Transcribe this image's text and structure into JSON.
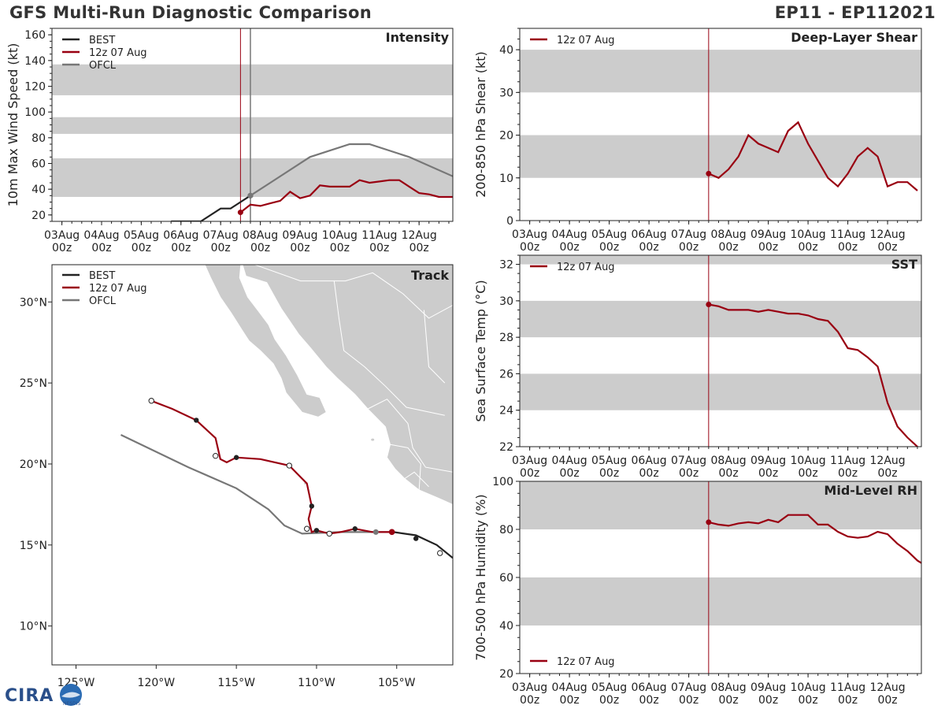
{
  "header": {
    "title_left": "GFS Multi-Run Diagnostic Comparison",
    "title_right": "EP11 - EP112021"
  },
  "logo": {
    "text": "CIRA",
    "subtext": "NESDIS"
  },
  "time_axis": {
    "ticks": [
      "03Aug",
      "04Aug",
      "05Aug",
      "06Aug",
      "07Aug",
      "08Aug",
      "09Aug",
      "10Aug",
      "11Aug",
      "12Aug"
    ],
    "sub": "00z",
    "start_day": 3,
    "end_day": 12.85,
    "init_day": 7.5
  },
  "colors": {
    "best": "#222222",
    "run": "#990011",
    "ofcl": "#777777",
    "band": "#cccccc",
    "land": "#cccccc",
    "border": "#ffffff",
    "axis": "#222222"
  },
  "chart_data": [
    {
      "id": "intensity",
      "type": "line",
      "title": "Intensity",
      "ylabel": "10m Max Wind Speed (kt)",
      "ylim": [
        15,
        165
      ],
      "yticks": [
        20,
        40,
        60,
        80,
        100,
        120,
        140,
        160
      ],
      "bands": [
        [
          34,
          64
        ],
        [
          83,
          96
        ],
        [
          113,
          137
        ]
      ],
      "legend": [
        "BEST",
        "12z 07 Aug",
        "OFCL"
      ],
      "ofcl_line_day": 7.75,
      "series": [
        {
          "name": "BEST",
          "x": [
            5.75,
            6.5,
            7.0,
            7.25,
            7.5,
            7.75
          ],
          "y": [
            15,
            15,
            25,
            25,
            30,
            35
          ]
        },
        {
          "name": "12z 07 Aug",
          "x": [
            7.5,
            7.75,
            8.0,
            8.25,
            8.5,
            8.75,
            9.0,
            9.25,
            9.5,
            9.75,
            10.0,
            10.25,
            10.5,
            10.75,
            11.0,
            11.25,
            11.5,
            11.75,
            12.0,
            12.25,
            12.5,
            12.75,
            12.85
          ],
          "y": [
            22,
            28,
            27,
            29,
            31,
            38,
            33,
            35,
            43,
            42,
            42,
            42,
            47,
            45,
            46,
            47,
            47,
            42,
            37,
            36,
            34,
            34,
            34
          ]
        },
        {
          "name": "OFCL",
          "x": [
            7.75,
            8.25,
            9.25,
            10.25,
            10.75,
            11.75,
            12.85
          ],
          "y": [
            35,
            45,
            65,
            75,
            75,
            65,
            50
          ]
        }
      ]
    },
    {
      "id": "shear",
      "type": "line",
      "title": "Deep-Layer Shear",
      "ylabel": "200-850 hPa Shear (kt)",
      "ylim": [
        0,
        45
      ],
      "yticks": [
        0,
        10,
        20,
        30,
        40
      ],
      "bands": [
        [
          10,
          20
        ],
        [
          30,
          40
        ]
      ],
      "legend": [
        "12z 07 Aug"
      ],
      "series": [
        {
          "name": "12z 07 Aug",
          "x": [
            7.5,
            7.75,
            8.0,
            8.25,
            8.5,
            8.75,
            9.0,
            9.25,
            9.5,
            9.75,
            10.0,
            10.25,
            10.5,
            10.75,
            11.0,
            11.25,
            11.5,
            11.75,
            12.0,
            12.25,
            12.5,
            12.75
          ],
          "y": [
            11,
            10,
            12,
            15,
            20,
            18,
            17,
            16,
            21,
            23,
            18,
            14,
            10,
            8,
            11,
            15,
            17,
            15,
            8,
            9,
            9,
            7
          ]
        }
      ]
    },
    {
      "id": "sst",
      "type": "line",
      "title": "SST",
      "ylabel": "Sea Surface Temp (°C)",
      "ylim": [
        22,
        32.5
      ],
      "yticks": [
        22,
        24,
        26,
        28,
        30,
        32
      ],
      "bands": [
        [
          24,
          26
        ],
        [
          28,
          30
        ],
        [
          32,
          33
        ]
      ],
      "legend": [
        "12z 07 Aug"
      ],
      "series": [
        {
          "name": "12z 07 Aug",
          "x": [
            7.5,
            7.75,
            8.0,
            8.25,
            8.5,
            8.75,
            9.0,
            9.25,
            9.5,
            9.75,
            10.0,
            10.25,
            10.5,
            10.75,
            11.0,
            11.25,
            11.5,
            11.75,
            12.0,
            12.25,
            12.5,
            12.75
          ],
          "y": [
            29.8,
            29.7,
            29.5,
            29.5,
            29.5,
            29.4,
            29.5,
            29.4,
            29.3,
            29.3,
            29.2,
            29.0,
            28.9,
            28.3,
            27.4,
            27.3,
            26.9,
            26.4,
            24.4,
            23.1,
            22.5,
            22.0
          ]
        }
      ]
    },
    {
      "id": "rh",
      "type": "line",
      "title": "Mid-Level RH",
      "ylabel": "700-500 hPa Humidity (%)",
      "ylim": [
        20,
        100
      ],
      "yticks": [
        20,
        40,
        60,
        80,
        100
      ],
      "bands": [
        [
          40,
          60
        ],
        [
          80,
          100
        ]
      ],
      "legend": [
        "12z 07 Aug"
      ],
      "series": [
        {
          "name": "12z 07 Aug",
          "x": [
            7.5,
            7.75,
            8.0,
            8.25,
            8.5,
            8.75,
            9.0,
            9.25,
            9.5,
            9.75,
            10.0,
            10.25,
            10.5,
            10.75,
            11.0,
            11.25,
            11.5,
            11.75,
            12.0,
            12.25,
            12.5,
            12.75,
            12.85
          ],
          "y": [
            83,
            82,
            81.5,
            82.5,
            83,
            82.5,
            84,
            83,
            86,
            86,
            86,
            82,
            82,
            79,
            77,
            76.5,
            77,
            79,
            78,
            74,
            71,
            67,
            66
          ]
        }
      ]
    },
    {
      "id": "track",
      "type": "map",
      "title": "Track",
      "xlabel_ticks": [
        "125°W",
        "120°W",
        "115°W",
        "110°W",
        "105°W"
      ],
      "ylabel_ticks": [
        "10°N",
        "15°N",
        "20°N",
        "25°N",
        "30°N"
      ],
      "lon_ticks": [
        -125,
        -120,
        -115,
        -110,
        -105
      ],
      "lat_ticks": [
        10,
        15,
        20,
        25,
        30
      ],
      "lon_range": [
        -126.5,
        -101.5
      ],
      "lat_range": [
        7.6,
        32.3
      ],
      "legend": [
        "BEST",
        "12z 07 Aug",
        "OFCL"
      ],
      "best": {
        "lon": [
          -105.2,
          -103.8,
          -102.5,
          -101.5
        ],
        "lat": [
          15.8,
          15.6,
          15.0,
          14.2
        ],
        "dots_filled": [
          [
            -103.8,
            15.4
          ]
        ],
        "dots_open": [
          [
            -102.3,
            14.5
          ]
        ]
      },
      "run": {
        "lon": [
          -105.3,
          -106.5,
          -107.6,
          -108.5,
          -109.2,
          -110.0,
          -110.3,
          -110.5,
          -110.3,
          -110.6,
          -111.7,
          -113.5,
          -115.0,
          -115.6,
          -116.0,
          -116.3,
          -117.5,
          -119.0,
          -120.3
        ],
        "lat": [
          15.8,
          15.8,
          16.0,
          15.8,
          15.7,
          15.9,
          15.8,
          16.6,
          17.4,
          18.8,
          19.9,
          20.3,
          20.4,
          20.1,
          20.3,
          21.6,
          22.7,
          23.4,
          23.9
        ],
        "dots_filled": [
          [
            -107.6,
            16.0
          ],
          [
            -110.0,
            15.9
          ],
          [
            -110.3,
            17.4
          ],
          [
            -115.0,
            20.4
          ],
          [
            -117.5,
            22.7
          ]
        ],
        "dots_open": [
          [
            -109.2,
            15.7
          ],
          [
            -110.6,
            16.0
          ],
          [
            -111.7,
            19.9
          ],
          [
            -116.3,
            20.5
          ],
          [
            -120.3,
            23.9
          ]
        ],
        "start": [
          -105.3,
          15.8
        ]
      },
      "ofcl": {
        "lon": [
          -105.2,
          -108.5,
          -110.9,
          -112.0,
          -113.0,
          -115.0,
          -118.0,
          -122.2
        ],
        "lat": [
          15.8,
          15.8,
          15.7,
          16.2,
          17.2,
          18.5,
          19.8,
          21.8
        ],
        "dots": [
          [
            -106.3,
            15.8
          ]
        ]
      }
    }
  ]
}
